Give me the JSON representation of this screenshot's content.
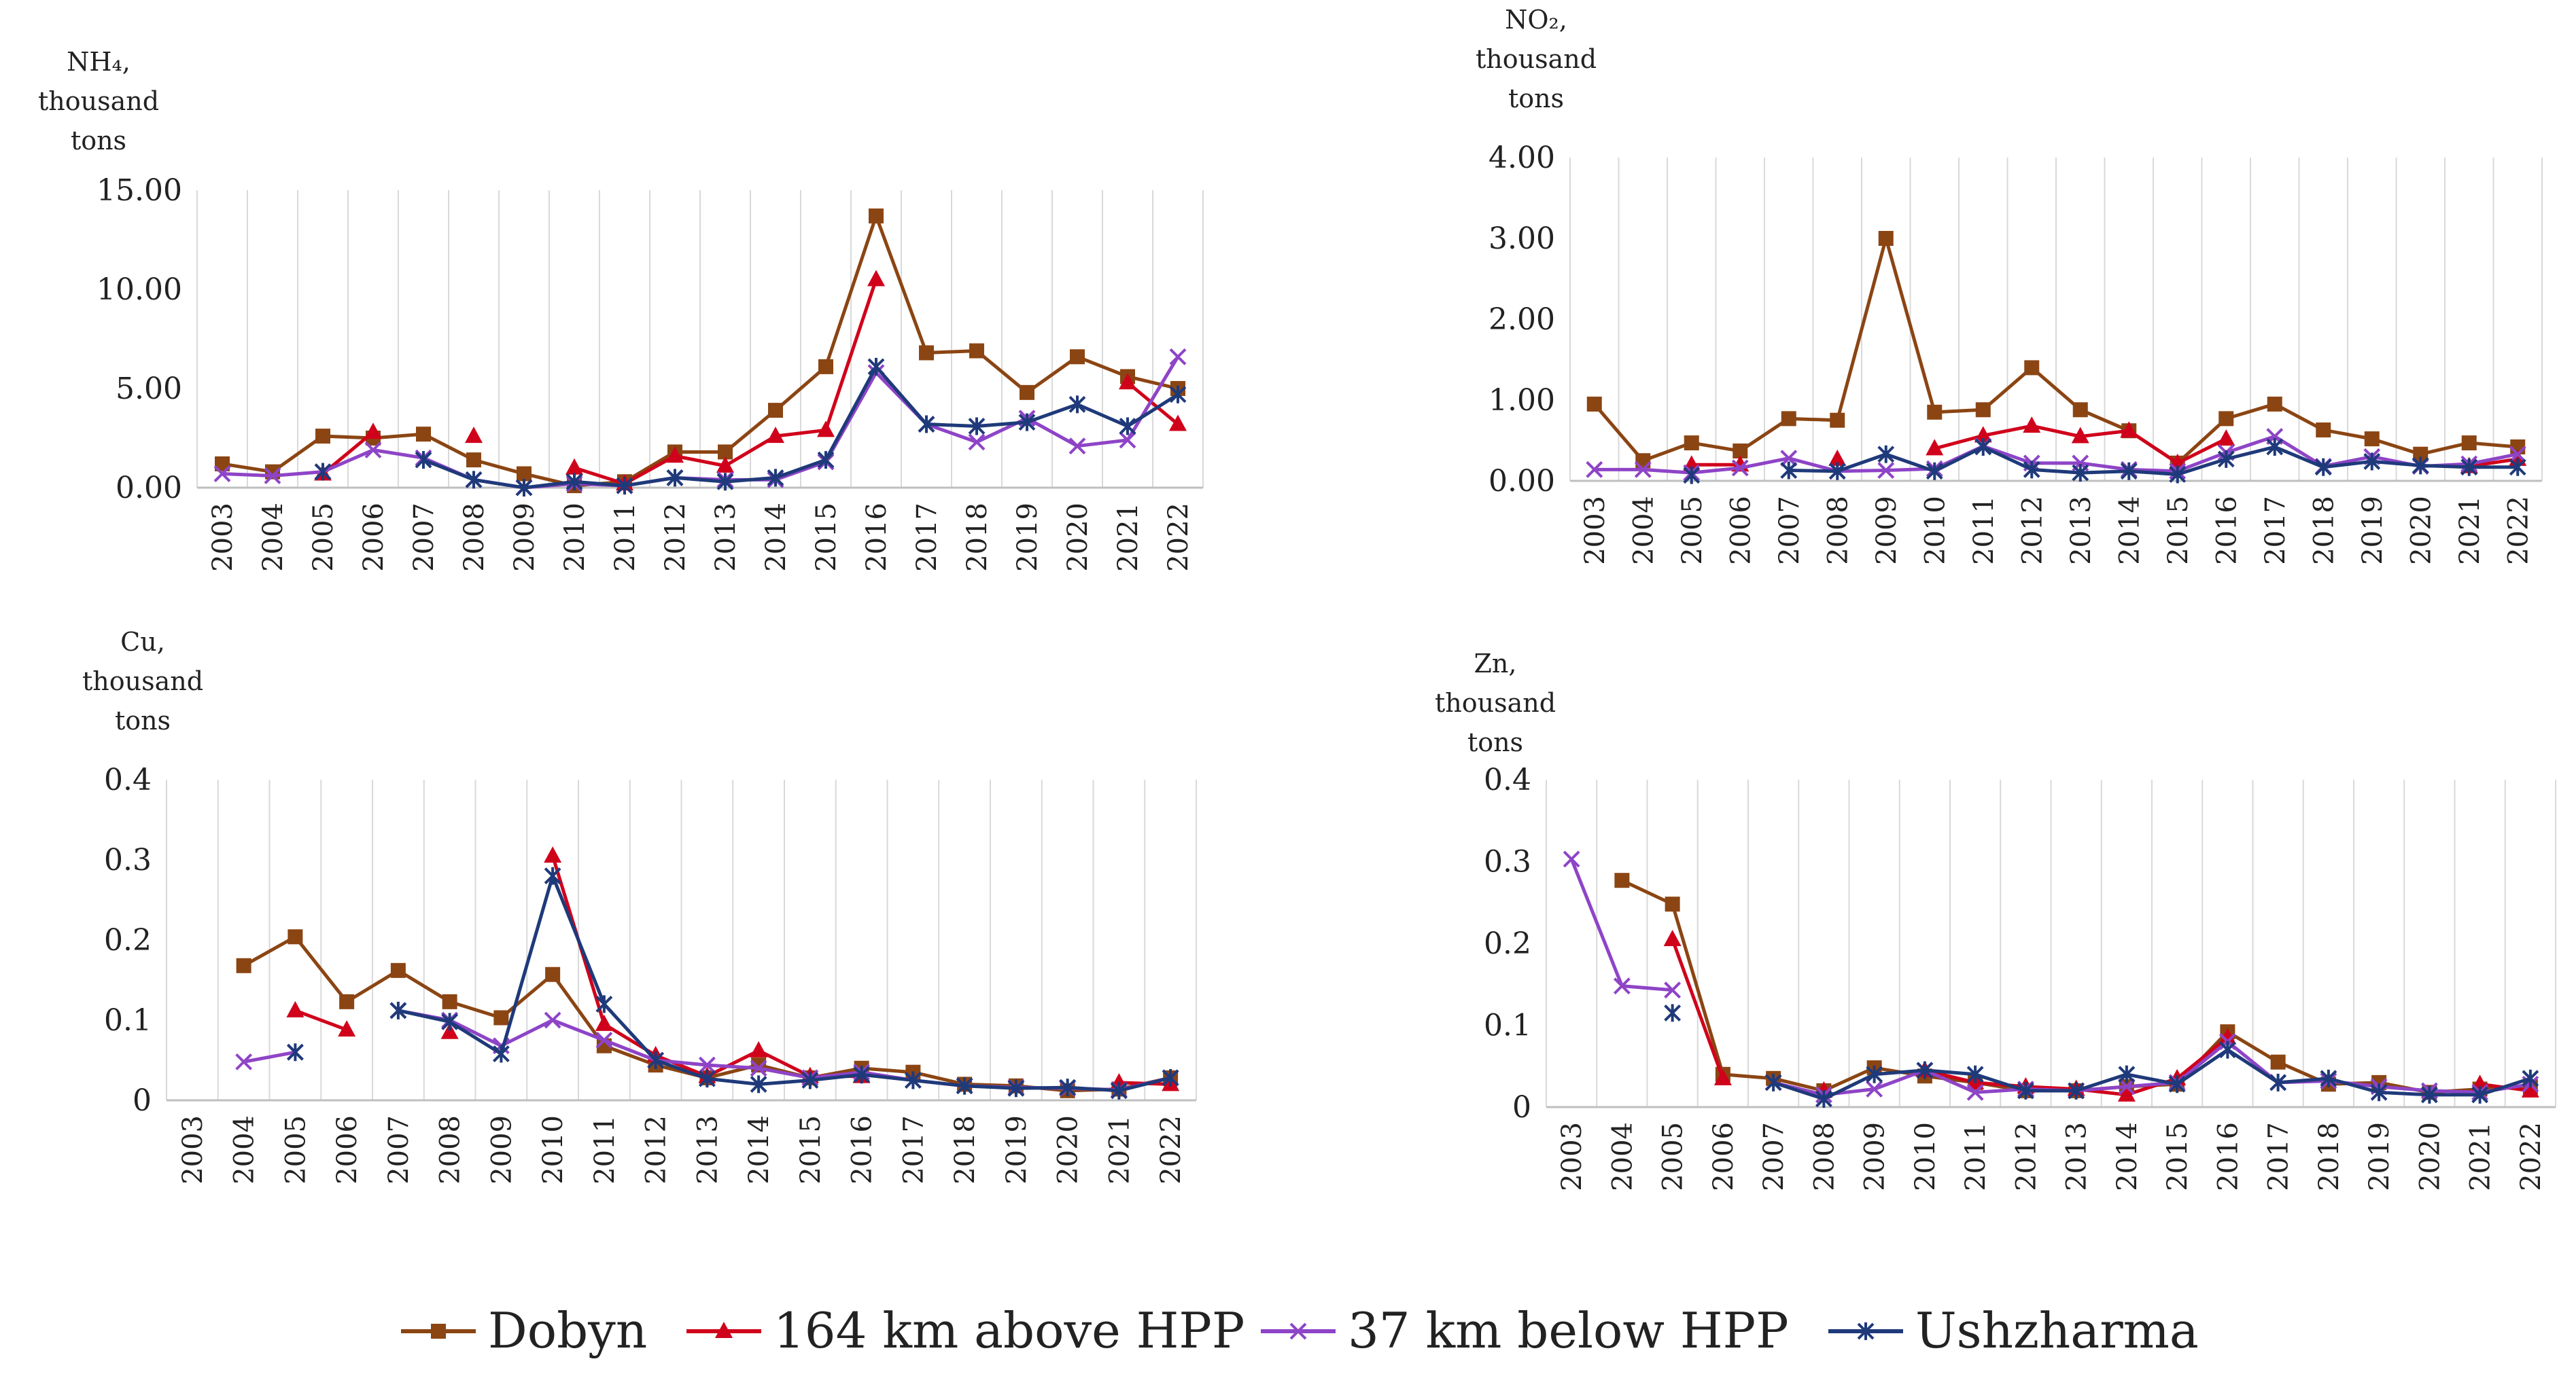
{
  "chart_data": [
    {
      "type": "line",
      "ylabel_lines": [
        "NH₄,",
        "thousand",
        "tons"
      ],
      "categories": [
        "2003",
        "2004",
        "2005",
        "2006",
        "2007",
        "2008",
        "2009",
        "2010",
        "2011",
        "2012",
        "2013",
        "2014",
        "2015",
        "2016",
        "2017",
        "2018",
        "2019",
        "2020",
        "2021",
        "2022"
      ],
      "yticks": [
        "0.00",
        "5.00",
        "10.00",
        "15.00"
      ],
      "ylim": [
        0,
        15
      ],
      "series": [
        {
          "name": "Dobyn",
          "values": [
            1.2,
            0.8,
            2.6,
            2.5,
            2.7,
            1.4,
            0.7,
            0.1,
            0.3,
            1.8,
            1.8,
            3.9,
            6.1,
            13.7,
            6.8,
            6.9,
            4.8,
            6.6,
            5.6,
            5.0
          ]
        },
        {
          "name": "164 km above HPP",
          "values": [
            null,
            null,
            0.7,
            2.8,
            null,
            2.6,
            null,
            1.0,
            0.2,
            1.6,
            1.1,
            2.6,
            2.9,
            10.5,
            null,
            null,
            null,
            null,
            5.3,
            3.2
          ]
        },
        {
          "name": "37 km below HPP",
          "values": [
            0.7,
            0.6,
            0.8,
            1.9,
            1.5,
            0.4,
            0.0,
            0.2,
            0.1,
            0.5,
            0.4,
            0.4,
            1.3,
            5.8,
            3.2,
            2.3,
            3.5,
            2.1,
            2.4,
            6.6
          ]
        },
        {
          "name": "Ushzharma",
          "values": [
            null,
            null,
            0.8,
            null,
            1.4,
            0.4,
            0.0,
            0.3,
            0.1,
            0.5,
            0.3,
            0.5,
            1.4,
            6.1,
            3.2,
            3.1,
            3.3,
            4.2,
            3.1,
            4.7
          ]
        }
      ]
    },
    {
      "type": "line",
      "ylabel_lines": [
        "NO₂,",
        "thousand",
        "tons"
      ],
      "categories": [
        "2003",
        "2004",
        "2005",
        "2006",
        "2007",
        "2008",
        "2009",
        "2010",
        "2011",
        "2012",
        "2013",
        "2014",
        "2015",
        "2016",
        "2017",
        "2018",
        "2019",
        "2020",
        "2021",
        "2022"
      ],
      "yticks": [
        "0.00",
        "1.00",
        "2.00",
        "3.00",
        "4.00"
      ],
      "ylim": [
        0,
        4
      ],
      "series": [
        {
          "name": "Dobyn",
          "values": [
            0.95,
            0.25,
            0.47,
            0.37,
            0.77,
            0.75,
            3.0,
            0.85,
            0.88,
            1.4,
            0.88,
            0.62,
            0.22,
            0.77,
            0.95,
            0.63,
            0.52,
            0.33,
            0.47,
            0.42
          ]
        },
        {
          "name": "164 km above HPP",
          "values": [
            null,
            null,
            0.2,
            0.2,
            null,
            0.27,
            null,
            0.4,
            0.56,
            0.68,
            0.55,
            0.62,
            0.22,
            0.52,
            null,
            null,
            null,
            null,
            0.18,
            0.27
          ]
        },
        {
          "name": "37 km below HPP",
          "values": [
            0.14,
            0.14,
            0.1,
            0.16,
            0.28,
            0.12,
            0.13,
            0.15,
            0.43,
            0.22,
            0.22,
            0.14,
            0.12,
            0.35,
            0.55,
            0.18,
            0.3,
            0.18,
            0.21,
            0.33
          ]
        },
        {
          "name": "Ushzharma",
          "values": [
            null,
            null,
            0.07,
            null,
            0.13,
            0.12,
            0.33,
            0.12,
            0.42,
            0.14,
            0.1,
            0.12,
            0.08,
            0.27,
            0.42,
            0.17,
            0.24,
            0.19,
            0.17,
            0.17
          ]
        }
      ]
    },
    {
      "type": "line",
      "ylabel_lines": [
        "Cu,",
        "thousand",
        "tons"
      ],
      "categories": [
        "2003",
        "2004",
        "2005",
        "2006",
        "2007",
        "2008",
        "2009",
        "2010",
        "2011",
        "2012",
        "2013",
        "2014",
        "2015",
        "2016",
        "2017",
        "2018",
        "2019",
        "2020",
        "2021",
        "2022"
      ],
      "yticks": [
        "0",
        "0.1",
        "0.2",
        "0.3",
        "0.4"
      ],
      "ylim": [
        0,
        0.4
      ],
      "series": [
        {
          "name": "Dobyn",
          "values": [
            null,
            0.168,
            0.204,
            0.123,
            0.162,
            0.123,
            0.103,
            0.157,
            0.068,
            0.044,
            0.028,
            0.044,
            0.028,
            0.04,
            0.035,
            0.02,
            0.018,
            0.012,
            0.014,
            0.028
          ]
        },
        {
          "name": "164 km above HPP",
          "values": [
            null,
            null,
            0.112,
            0.088,
            null,
            0.085,
            null,
            0.305,
            0.095,
            0.056,
            0.03,
            0.062,
            0.03,
            0.03,
            null,
            null,
            null,
            null,
            0.022,
            0.02
          ]
        },
        {
          "name": "37 km below HPP",
          "values": [
            null,
            0.048,
            0.06,
            null,
            0.112,
            0.1,
            0.068,
            0.1,
            0.075,
            0.05,
            0.044,
            0.04,
            0.028,
            0.035,
            0.025,
            0.018,
            0.016,
            0.015,
            0.013,
            0.028
          ]
        },
        {
          "name": "Ushzharma",
          "values": [
            null,
            null,
            0.06,
            null,
            0.112,
            0.098,
            0.058,
            0.28,
            0.12,
            0.05,
            0.027,
            0.02,
            0.025,
            0.032,
            0.025,
            0.018,
            0.015,
            0.016,
            0.012,
            0.028
          ]
        }
      ]
    },
    {
      "type": "line",
      "ylabel_lines": [
        "Zn,",
        "thousand",
        "tons"
      ],
      "categories": [
        "2003",
        "2004",
        "2005",
        "2006",
        "2007",
        "2008",
        "2009",
        "2010",
        "2011",
        "2012",
        "2013",
        "2014",
        "2015",
        "2016",
        "2017",
        "2018",
        "2019",
        "2020",
        "2021",
        "2022"
      ],
      "yticks": [
        "0",
        "0.1",
        "0.2",
        "0.3",
        "0.4"
      ],
      "ylim": [
        0,
        0.4
      ],
      "series": [
        {
          "name": "Dobyn",
          "values": [
            null,
            0.277,
            0.248,
            0.04,
            0.035,
            0.02,
            0.048,
            0.038,
            0.03,
            0.02,
            0.02,
            0.025,
            0.028,
            0.092,
            0.055,
            0.028,
            0.03,
            0.018,
            0.022,
            0.025
          ]
        },
        {
          "name": "164 km above HPP",
          "values": [
            null,
            null,
            0.205,
            0.035,
            null,
            0.02,
            null,
            0.045,
            0.03,
            0.025,
            0.022,
            0.015,
            0.035,
            0.085,
            null,
            null,
            null,
            null,
            0.028,
            0.02
          ]
        },
        {
          "name": "37 km below HPP",
          "values": [
            0.303,
            0.148,
            0.143,
            null,
            0.03,
            0.015,
            0.022,
            0.045,
            0.018,
            0.022,
            0.02,
            0.025,
            0.03,
            0.08,
            0.03,
            0.032,
            0.025,
            0.02,
            0.018,
            0.028
          ]
        },
        {
          "name": "Ushzharma",
          "values": [
            null,
            null,
            0.115,
            null,
            0.03,
            0.01,
            0.04,
            0.045,
            0.04,
            0.02,
            0.02,
            0.04,
            0.028,
            0.07,
            0.03,
            0.035,
            0.018,
            0.015,
            0.015,
            0.035
          ]
        }
      ]
    }
  ],
  "series_styles": [
    {
      "name": "Dobyn",
      "color": "#8B4513",
      "marker": "square"
    },
    {
      "name": "164 km above HPP",
      "color": "#D0021B",
      "marker": "triangle"
    },
    {
      "name": "37 km below HPP",
      "color": "#8E44C7",
      "marker": "x"
    },
    {
      "name": "Ushzharma",
      "color": "#1F3A7A",
      "marker": "star"
    }
  ],
  "legend": {
    "placement": "bottom",
    "items": [
      "Dobyn",
      "164 km above HPP",
      "37 km below HPP",
      "Ushzharma"
    ]
  }
}
